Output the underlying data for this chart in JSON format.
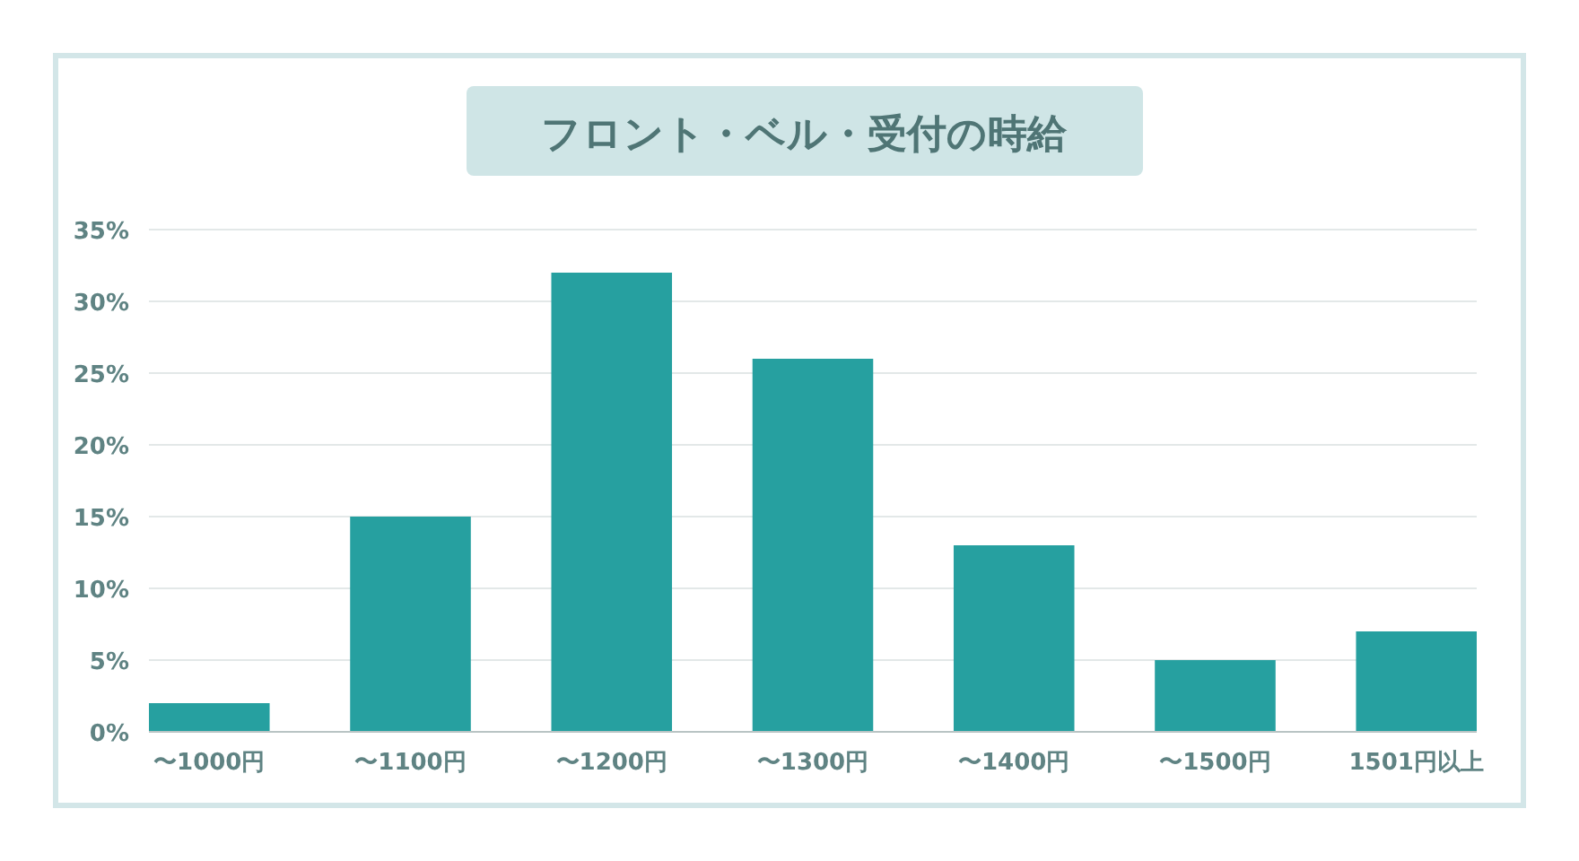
{
  "chart_data": {
    "type": "bar",
    "title": "フロント・ベル・受付の時給",
    "categories": [
      "〜1000円",
      "〜1100円",
      "〜1200円",
      "〜1300円",
      "〜1400円",
      "〜1500円",
      "1501円以上"
    ],
    "values": [
      2,
      15,
      32,
      26,
      13,
      5,
      7
    ],
    "color": "#26a0a0",
    "ylim": [
      0,
      35
    ],
    "yticks": [
      {
        "value": 0,
        "label": "0%"
      },
      {
        "value": 5,
        "label": "5%"
      },
      {
        "value": 10,
        "label": "10%"
      },
      {
        "value": 15,
        "label": "15%"
      },
      {
        "value": 20,
        "label": "20%"
      },
      {
        "value": 25,
        "label": "25%"
      },
      {
        "value": 30,
        "label": "30%"
      },
      {
        "value": 35,
        "label": "35%"
      }
    ],
    "grid": "y"
  }
}
